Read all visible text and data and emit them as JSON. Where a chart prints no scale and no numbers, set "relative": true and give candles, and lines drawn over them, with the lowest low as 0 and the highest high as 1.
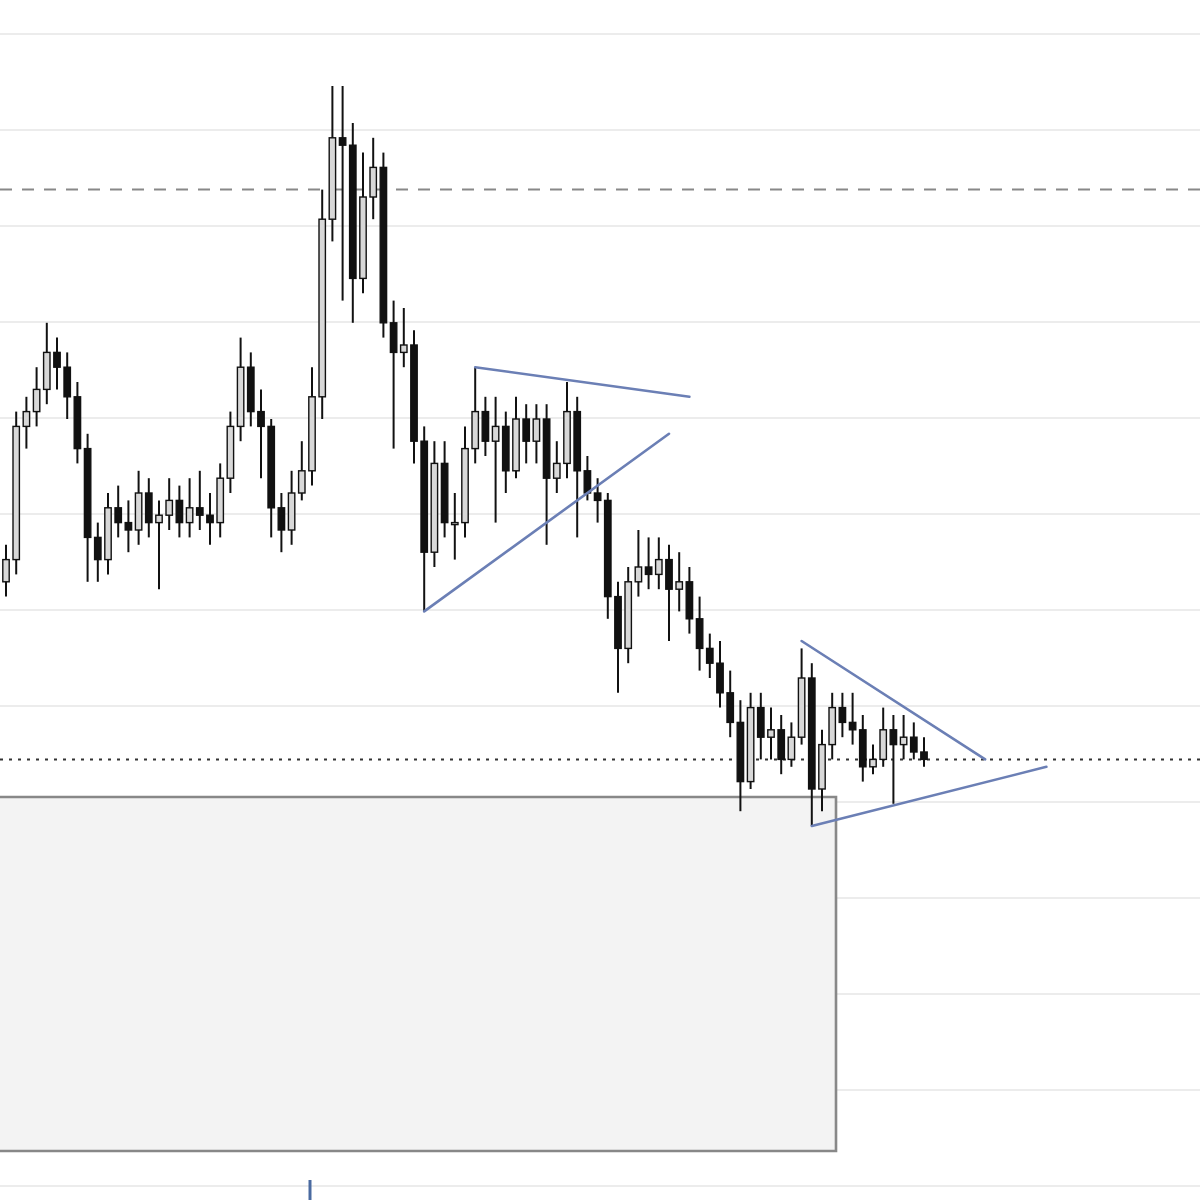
{
  "chart_data": {
    "type": "candlestick",
    "relative": true,
    "grid": "y",
    "categories": [
      null,
      null,
      null,
      null,
      null,
      null,
      null,
      null,
      null,
      null,
      null,
      null,
      null,
      null,
      null,
      null,
      null,
      null,
      null,
      null,
      null,
      null,
      null,
      null,
      null,
      null,
      null,
      null,
      null,
      null,
      null,
      null,
      null,
      null,
      null,
      null,
      null,
      null,
      null,
      null,
      null,
      null,
      null,
      null,
      null,
      null,
      null,
      null,
      null,
      null,
      null,
      null,
      null,
      null,
      null,
      null,
      null,
      null,
      null,
      null,
      null,
      null,
      null,
      null,
      null,
      null,
      null,
      null,
      null,
      null,
      null,
      null,
      null,
      null,
      null,
      null,
      null,
      null,
      null,
      null,
      null,
      null,
      null,
      null,
      null,
      null,
      null,
      null,
      null,
      null,
      null,
      null,
      null,
      null,
      null,
      null,
      null,
      null,
      null,
      null,
      null,
      null,
      null,
      null,
      null,
      null,
      null,
      null,
      null,
      null,
      null,
      null,
      null,
      null,
      null,
      null,
      null
    ],
    "ohlc": [
      [
        0.33,
        0.38,
        0.31,
        0.36
      ],
      [
        0.36,
        0.56,
        0.34,
        0.54
      ],
      [
        0.54,
        0.58,
        0.51,
        0.56
      ],
      [
        0.56,
        0.62,
        0.54,
        0.59
      ],
      [
        0.59,
        0.68,
        0.57,
        0.64
      ],
      [
        0.64,
        0.66,
        0.59,
        0.62
      ],
      [
        0.62,
        0.64,
        0.55,
        0.58
      ],
      [
        0.58,
        0.6,
        0.49,
        0.51
      ],
      [
        0.51,
        0.53,
        0.33,
        0.39
      ],
      [
        0.39,
        0.41,
        0.33,
        0.36
      ],
      [
        0.36,
        0.45,
        0.34,
        0.43
      ],
      [
        0.43,
        0.46,
        0.39,
        0.41
      ],
      [
        0.41,
        0.44,
        0.37,
        0.4
      ],
      [
        0.4,
        0.48,
        0.38,
        0.45
      ],
      [
        0.45,
        0.47,
        0.39,
        0.41
      ],
      [
        0.41,
        0.44,
        0.32,
        0.42
      ],
      [
        0.42,
        0.47,
        0.4,
        0.44
      ],
      [
        0.44,
        0.46,
        0.39,
        0.41
      ],
      [
        0.41,
        0.47,
        0.39,
        0.43
      ],
      [
        0.43,
        0.48,
        0.4,
        0.42
      ],
      [
        0.42,
        0.45,
        0.38,
        0.41
      ],
      [
        0.41,
        0.49,
        0.39,
        0.47
      ],
      [
        0.47,
        0.56,
        0.45,
        0.54
      ],
      [
        0.54,
        0.66,
        0.52,
        0.62
      ],
      [
        0.62,
        0.64,
        0.54,
        0.56
      ],
      [
        0.56,
        0.59,
        0.47,
        0.54
      ],
      [
        0.54,
        0.55,
        0.39,
        0.43
      ],
      [
        0.43,
        0.45,
        0.37,
        0.4
      ],
      [
        0.4,
        0.48,
        0.38,
        0.45
      ],
      [
        0.45,
        0.52,
        0.44,
        0.48
      ],
      [
        0.48,
        0.62,
        0.46,
        0.58
      ],
      [
        0.58,
        0.86,
        0.55,
        0.82
      ],
      [
        0.82,
        1,
        0.79,
        0.93
      ],
      [
        0.93,
        1,
        0.71,
        0.92
      ],
      [
        0.92,
        0.95,
        0.68,
        0.74
      ],
      [
        0.74,
        0.91,
        0.72,
        0.85
      ],
      [
        0.85,
        0.93,
        0.82,
        0.89
      ],
      [
        0.89,
        0.91,
        0.66,
        0.68
      ],
      [
        0.68,
        0.71,
        0.51,
        0.64
      ],
      [
        0.64,
        0.7,
        0.62,
        0.65
      ],
      [
        0.65,
        0.67,
        0.49,
        0.52
      ],
      [
        0.52,
        0.54,
        0.29,
        0.37
      ],
      [
        0.37,
        0.52,
        0.35,
        0.49
      ],
      [
        0.49,
        0.52,
        0.39,
        0.41
      ],
      [
        0.41,
        0.45,
        0.36,
        0.41
      ],
      [
        0.41,
        0.54,
        0.39,
        0.51
      ],
      [
        0.51,
        0.62,
        0.49,
        0.56
      ],
      [
        0.56,
        0.58,
        0.5,
        0.52
      ],
      [
        0.52,
        0.58,
        0.41,
        0.54
      ],
      [
        0.54,
        0.56,
        0.45,
        0.48
      ],
      [
        0.48,
        0.58,
        0.47,
        0.55
      ],
      [
        0.55,
        0.57,
        0.49,
        0.52
      ],
      [
        0.52,
        0.57,
        0.49,
        0.55
      ],
      [
        0.55,
        0.57,
        0.38,
        0.47
      ],
      [
        0.47,
        0.52,
        0.45,
        0.49
      ],
      [
        0.49,
        0.6,
        0.47,
        0.56
      ],
      [
        0.56,
        0.58,
        0.39,
        0.48
      ],
      [
        0.48,
        0.5,
        0.44,
        0.45
      ],
      [
        0.45,
        0.47,
        0.41,
        0.44
      ],
      [
        0.44,
        0.45,
        0.28,
        0.31
      ],
      [
        0.31,
        0.33,
        0.18,
        0.24
      ],
      [
        0.24,
        0.35,
        0.22,
        0.33
      ],
      [
        0.33,
        0.4,
        0.31,
        0.35
      ],
      [
        0.35,
        0.39,
        0.32,
        0.34
      ],
      [
        0.34,
        0.39,
        0.32,
        0.36
      ],
      [
        0.36,
        0.38,
        0.25,
        0.32
      ],
      [
        0.32,
        0.37,
        0.29,
        0.33
      ],
      [
        0.33,
        0.35,
        0.26,
        0.28
      ],
      [
        0.28,
        0.31,
        0.21,
        0.24
      ],
      [
        0.24,
        0.26,
        0.2,
        0.22
      ],
      [
        0.22,
        0.25,
        0.16,
        0.18
      ],
      [
        0.18,
        0.21,
        0.12,
        0.14
      ],
      [
        0.14,
        0.17,
        0.02,
        0.06
      ],
      [
        0.06,
        0.18,
        0.05,
        0.16
      ],
      [
        0.16,
        0.18,
        0.09,
        0.12
      ],
      [
        0.12,
        0.16,
        0.09,
        0.13
      ],
      [
        0.13,
        0.15,
        0.07,
        0.09
      ],
      [
        0.09,
        0.14,
        0.08,
        0.12
      ],
      [
        0.12,
        0.24,
        0.11,
        0.2
      ],
      [
        0.2,
        0.22,
        0,
        0.05
      ],
      [
        0.05,
        0.13,
        0.02,
        0.11
      ],
      [
        0.11,
        0.18,
        0.09,
        0.16
      ],
      [
        0.16,
        0.18,
        0.12,
        0.14
      ],
      [
        0.14,
        0.18,
        0.11,
        0.13
      ],
      [
        0.13,
        0.15,
        0.06,
        0.08
      ],
      [
        0.08,
        0.11,
        0.07,
        0.09
      ],
      [
        0.09,
        0.16,
        0.08,
        0.13
      ],
      [
        0.13,
        0.15,
        0.03,
        0.11
      ],
      [
        0.11,
        0.15,
        0.09,
        0.12
      ],
      [
        0.12,
        0.14,
        0.09,
        0.1
      ],
      [
        0.1,
        0.12,
        0.08,
        0.09
      ],
      null,
      null,
      null,
      null,
      null,
      null,
      null,
      null,
      null,
      null,
      null,
      null,
      null,
      null,
      null,
      null,
      null,
      null,
      null,
      null,
      null,
      null,
      null,
      null,
      null,
      null
    ],
    "series": [
      {
        "type": "line",
        "color": "#6b7fb5",
        "values": [
          null,
          null,
          null,
          null,
          null,
          null,
          null,
          null,
          null,
          null,
          null,
          null,
          null,
          null,
          null,
          null,
          null,
          null,
          null,
          null,
          null,
          null,
          null,
          null,
          null,
          null,
          null,
          null,
          null,
          null,
          null,
          null,
          null,
          null,
          null,
          null,
          null,
          null,
          null,
          null,
          null,
          null,
          null,
          null,
          null,
          null,
          0.62,
          null,
          null,
          null,
          null,
          null,
          null,
          null,
          null,
          null,
          null,
          null,
          null,
          null,
          null,
          null,
          null,
          null,
          null,
          null,
          null,
          0.58,
          null,
          null,
          null,
          null,
          null,
          null,
          null,
          null,
          null,
          null,
          null,
          null,
          null,
          null,
          null,
          null,
          null,
          null,
          null,
          null,
          null,
          null,
          null,
          null,
          null,
          null,
          null,
          null,
          null,
          null,
          null,
          null,
          null,
          null,
          null,
          null,
          null,
          null,
          null,
          null,
          null,
          null,
          null,
          null,
          null,
          null,
          null,
          null,
          null
        ]
      },
      {
        "type": "line",
        "color": "#6b7fb5",
        "values": [
          null,
          null,
          null,
          null,
          null,
          null,
          null,
          null,
          null,
          null,
          null,
          null,
          null,
          null,
          null,
          null,
          null,
          null,
          null,
          null,
          null,
          null,
          null,
          null,
          null,
          null,
          null,
          null,
          null,
          null,
          null,
          null,
          null,
          null,
          null,
          null,
          null,
          null,
          null,
          null,
          null,
          0.29,
          null,
          null,
          null,
          null,
          null,
          null,
          null,
          null,
          null,
          null,
          null,
          null,
          null,
          null,
          null,
          null,
          null,
          null,
          null,
          null,
          null,
          null,
          null,
          0.53,
          null,
          null,
          null,
          null,
          null,
          null,
          null,
          null,
          null,
          null,
          null,
          null,
          null,
          null,
          null,
          null,
          null,
          null,
          null,
          null,
          null,
          null,
          null,
          null,
          null,
          null,
          null,
          null,
          null,
          null,
          null,
          null,
          null,
          null,
          null,
          null,
          null,
          null,
          null,
          null,
          null,
          null,
          null,
          null,
          null,
          null,
          null,
          null,
          null,
          null,
          null
        ]
      },
      {
        "type": "line",
        "color": "#6b7fb5",
        "values": [
          null,
          null,
          null,
          null,
          null,
          null,
          null,
          null,
          null,
          null,
          null,
          null,
          null,
          null,
          null,
          null,
          null,
          null,
          null,
          null,
          null,
          null,
          null,
          null,
          null,
          null,
          null,
          null,
          null,
          null,
          null,
          null,
          null,
          null,
          null,
          null,
          null,
          null,
          null,
          null,
          null,
          null,
          null,
          null,
          null,
          null,
          null,
          null,
          null,
          null,
          null,
          null,
          null,
          null,
          null,
          null,
          null,
          null,
          null,
          null,
          null,
          null,
          null,
          null,
          null,
          null,
          null,
          null,
          null,
          null,
          null,
          null,
          null,
          null,
          null,
          null,
          null,
          null,
          0.25,
          null,
          null,
          null,
          null,
          null,
          null,
          null,
          null,
          null,
          null,
          null,
          null,
          null,
          null,
          null,
          null,
          null,
          0.09,
          null,
          null,
          null,
          null,
          null,
          null,
          null,
          null,
          null,
          null,
          null,
          null,
          null,
          null,
          null,
          null,
          null,
          null,
          null,
          null
        ]
      },
      {
        "type": "line",
        "color": "#6b7fb5",
        "values": [
          null,
          null,
          null,
          null,
          null,
          null,
          null,
          null,
          null,
          null,
          null,
          null,
          null,
          null,
          null,
          null,
          null,
          null,
          null,
          null,
          null,
          null,
          null,
          null,
          null,
          null,
          null,
          null,
          null,
          null,
          null,
          null,
          null,
          null,
          null,
          null,
          null,
          null,
          null,
          null,
          null,
          null,
          null,
          null,
          null,
          null,
          null,
          null,
          null,
          null,
          null,
          null,
          null,
          null,
          null,
          null,
          null,
          null,
          null,
          null,
          null,
          null,
          null,
          null,
          null,
          null,
          null,
          null,
          null,
          null,
          null,
          null,
          null,
          null,
          null,
          null,
          null,
          null,
          null,
          0,
          null,
          null,
          null,
          null,
          null,
          null,
          null,
          null,
          null,
          null,
          null,
          null,
          null,
          null,
          null,
          null,
          null,
          null,
          null,
          null,
          null,
          null,
          0.08,
          null,
          null,
          null,
          null,
          null,
          null,
          null,
          null,
          null,
          null,
          null,
          null,
          null,
          null
        ]
      }
    ],
    "ref_lines": [
      {
        "axis": "y",
        "value": 0.86,
        "color": "#888888",
        "line_style": "dashed"
      },
      {
        "axis": "y",
        "value": 0.09,
        "color": "#333333",
        "line_style": "dotted"
      }
    ]
  }
}
